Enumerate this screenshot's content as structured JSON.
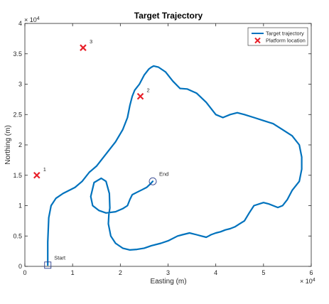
{
  "chart_data": {
    "type": "line",
    "title": "Target Trajectory",
    "xlabel": "Easting (m)",
    "ylabel": "Northing (m)",
    "x_exponent": "× 10^4",
    "y_exponent": "× 10^4",
    "x_exponent_label": "× 10",
    "x_exponent_power": "4",
    "y_exponent_label": "× 10",
    "y_exponent_power": "4",
    "xlim": [
      0,
      60000
    ],
    "ylim": [
      0,
      40000
    ],
    "xticks": [
      0,
      10000,
      20000,
      30000,
      40000,
      50000,
      60000
    ],
    "yticks": [
      0,
      5000,
      10000,
      15000,
      20000,
      25000,
      30000,
      35000,
      40000
    ],
    "xtick_labels": [
      "0",
      "1",
      "2",
      "3",
      "4",
      "5",
      "6"
    ],
    "ytick_labels": [
      "0",
      "0.5",
      "1",
      "1.5",
      "2",
      "2.5",
      "3",
      "3.5",
      "4"
    ],
    "grid": false,
    "legend": {
      "position": "top-right",
      "entries": [
        "Target trajectory",
        "Platform location"
      ]
    },
    "series": [
      {
        "name": "Target trajectory",
        "kind": "line",
        "color": "#0072bd",
        "x": [
          4800,
          4800,
          5000,
          5500,
          6500,
          8000,
          10500,
          12000,
          13500,
          15000,
          17000,
          19000,
          20500,
          21500,
          22000,
          22500,
          23000,
          23500,
          24000,
          25000,
          26000,
          26500,
          27000,
          28000,
          29500,
          31000,
          32500,
          34000,
          36000,
          38000,
          40000,
          41500,
          43000,
          44500,
          46000,
          48000,
          50000,
          52000,
          54000,
          56000,
          57500,
          58000,
          58000,
          57500,
          56000,
          55000,
          54000,
          53000,
          52000,
          51000,
          50000,
          48000,
          47000,
          46000,
          45000,
          44000,
          43000,
          42000,
          41000,
          40000,
          39000,
          38500,
          38000,
          37000,
          36000,
          34500,
          33000,
          32000,
          30000,
          28500,
          26500,
          25000,
          23500,
          22000,
          20500,
          19000,
          18000,
          17500,
          17600,
          17800,
          17700,
          17000,
          16000,
          14500,
          13800,
          14200,
          15500,
          17000,
          19000,
          20500,
          21500,
          22000,
          22500,
          23500,
          24500,
          25500,
          26200,
          26800
        ],
        "y": [
          200,
          4000,
          8000,
          10000,
          11200,
          12000,
          13000,
          14000,
          15500,
          16500,
          18500,
          20500,
          22500,
          24500,
          26500,
          28000,
          29000,
          29500,
          30000,
          31500,
          32500,
          32800,
          33000,
          32800,
          32000,
          30500,
          29300,
          29200,
          28500,
          27000,
          25000,
          24500,
          25000,
          25300,
          25000,
          24500,
          24000,
          23500,
          22500,
          21500,
          20000,
          18000,
          16000,
          14000,
          12500,
          11000,
          10000,
          9700,
          10000,
          10300,
          10500,
          10000,
          8800,
          7500,
          7000,
          6500,
          6200,
          6000,
          5700,
          5500,
          5200,
          5000,
          4800,
          5000,
          5200,
          5500,
          5200,
          5000,
          4200,
          3800,
          3400,
          3000,
          2800,
          2700,
          3000,
          3800,
          5000,
          7000,
          8500,
          9600,
          12000,
          14000,
          14500,
          13800,
          11500,
          10000,
          9200,
          8800,
          9000,
          9500,
          10000,
          11000,
          11800,
          12200,
          12600,
          13000,
          13500,
          14000
        ]
      },
      {
        "name": "Platform location",
        "kind": "marker",
        "color": "#e8202a",
        "x": [
          2500,
          12200,
          24200
        ],
        "y": [
          15000,
          36000,
          28000
        ],
        "labels": [
          "1",
          "3",
          "2"
        ]
      }
    ],
    "annotations": [
      {
        "text": "Start",
        "x": 4800,
        "y": 200,
        "marker": "square"
      },
      {
        "text": "End",
        "x": 26800,
        "y": 14000,
        "marker": "circle"
      }
    ]
  }
}
